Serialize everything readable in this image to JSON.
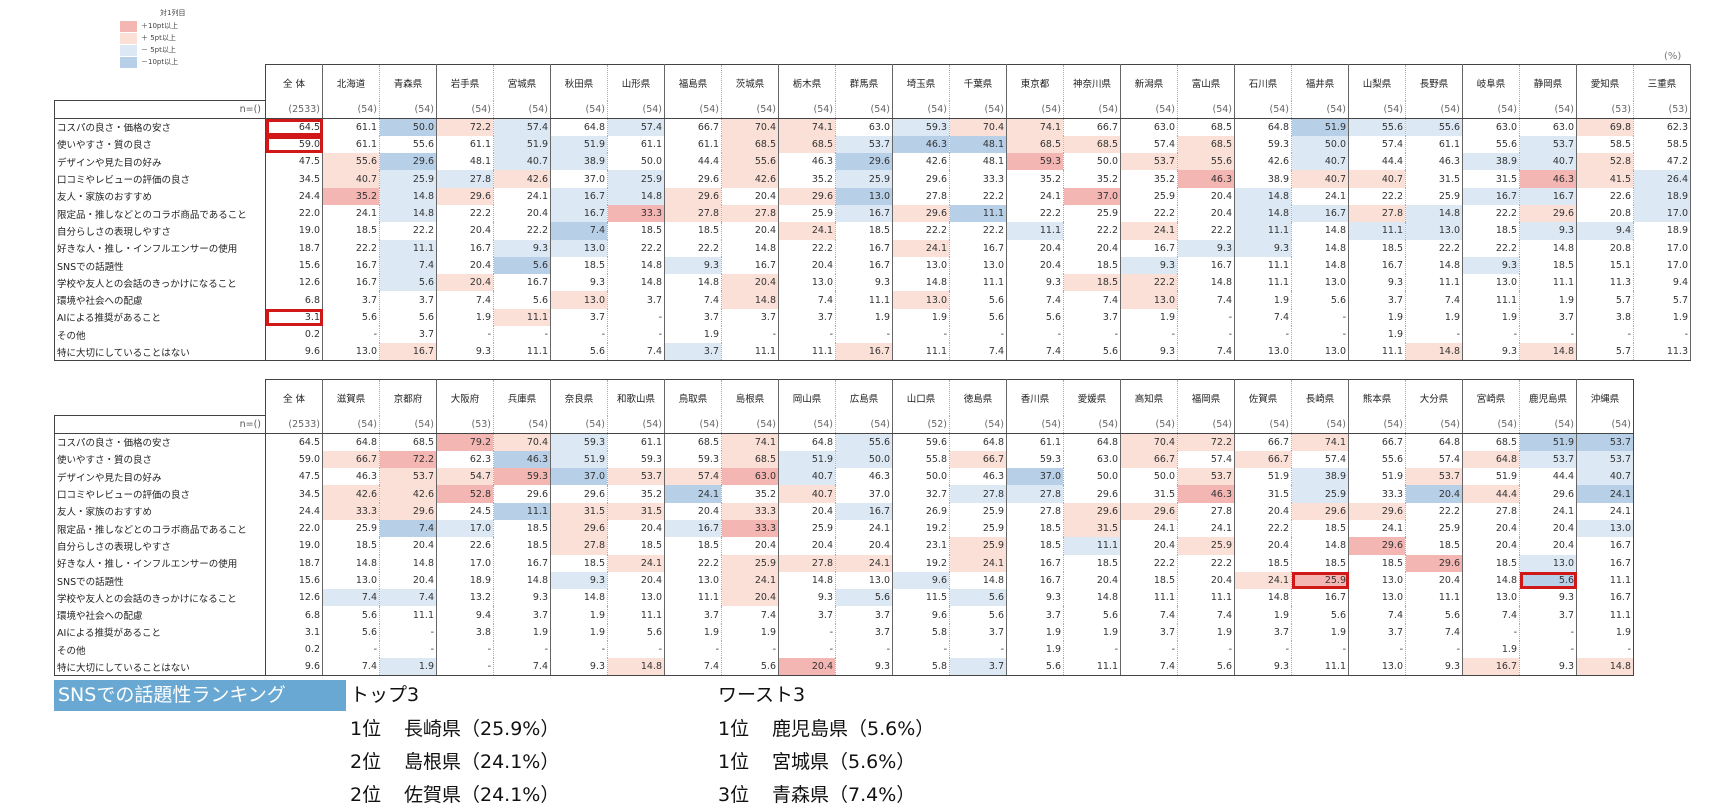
{
  "legend": {
    "title": "対1列目",
    "items": [
      {
        "label": "＋10pt以上",
        "color": "#f4b6b3"
      },
      {
        "label": "＋ 5pt以上",
        "color": "#fbe0d7"
      },
      {
        "label": "－ 5pt以上",
        "color": "#dce8f4"
      },
      {
        "label": "－10pt以上",
        "color": "#b8cfe8"
      }
    ]
  },
  "unit": "(%)",
  "n_label": "n=()",
  "categories": [
    "コスパの良さ・価格の安さ",
    "使いやすさ・質の良さ",
    "デザインや見た目の好み",
    "口コミやレビューの評価の良さ",
    "友人・家族のおすすめ",
    "限定品・推しなどとのコラボ商品であること",
    "自分らしさの表現しやすさ",
    "好きな人・推し・インフルエンサーの使用",
    "SNSでの話題性",
    "学校や友人との会話のきっかけになること",
    "環境や社会への配慮",
    "AIによる推奨があること",
    "その他",
    "特に大切にしていることはない"
  ],
  "table1": {
    "headers": [
      "全 体",
      "北海道",
      "青森県",
      "岩手県",
      "宮城県",
      "秋田県",
      "山形県",
      "福島県",
      "茨城県",
      "栃木県",
      "群馬県",
      "埼玉県",
      "千葉県",
      "東京都",
      "神奈川県",
      "新潟県",
      "富山県",
      "石川県",
      "福井県",
      "山梨県",
      "長野県",
      "岐阜県",
      "静岡県",
      "愛知県",
      "三重県"
    ],
    "n": [
      "(2533)",
      "(54)",
      "(54)",
      "(54)",
      "(54)",
      "(54)",
      "(54)",
      "(54)",
      "(54)",
      "(54)",
      "(54)",
      "(54)",
      "(54)",
      "(54)",
      "(54)",
      "(54)",
      "(54)",
      "(54)",
      "(54)",
      "(54)",
      "(54)",
      "(54)",
      "(54)",
      "(53)",
      "(53)"
    ],
    "rows": [
      [
        "64.5",
        "61.1",
        "50.0",
        "72.2",
        "57.4",
        "64.8",
        "57.4",
        "66.7",
        "70.4",
        "74.1",
        "63.0",
        "59.3",
        "70.4",
        "74.1",
        "66.7",
        "63.0",
        "68.5",
        "64.8",
        "51.9",
        "55.6",
        "55.6",
        "63.0",
        "63.0",
        "69.8",
        "62.3"
      ],
      [
        "59.0",
        "61.1",
        "55.6",
        "61.1",
        "51.9",
        "51.9",
        "61.1",
        "61.1",
        "68.5",
        "68.5",
        "53.7",
        "46.3",
        "48.1",
        "68.5",
        "68.5",
        "57.4",
        "68.5",
        "59.3",
        "50.0",
        "57.4",
        "61.1",
        "55.6",
        "53.7",
        "58.5",
        "58.5"
      ],
      [
        "47.5",
        "55.6",
        "29.6",
        "48.1",
        "40.7",
        "38.9",
        "50.0",
        "44.4",
        "55.6",
        "46.3",
        "29.6",
        "42.6",
        "48.1",
        "59.3",
        "50.0",
        "53.7",
        "55.6",
        "42.6",
        "40.7",
        "44.4",
        "46.3",
        "38.9",
        "40.7",
        "52.8",
        "47.2"
      ],
      [
        "34.5",
        "40.7",
        "25.9",
        "27.8",
        "42.6",
        "37.0",
        "25.9",
        "29.6",
        "42.6",
        "35.2",
        "25.9",
        "29.6",
        "33.3",
        "35.2",
        "35.2",
        "35.2",
        "46.3",
        "38.9",
        "40.7",
        "40.7",
        "31.5",
        "31.5",
        "46.3",
        "41.5",
        "26.4"
      ],
      [
        "24.4",
        "35.2",
        "14.8",
        "29.6",
        "24.1",
        "16.7",
        "14.8",
        "29.6",
        "20.4",
        "29.6",
        "13.0",
        "27.8",
        "22.2",
        "24.1",
        "37.0",
        "25.9",
        "20.4",
        "14.8",
        "24.1",
        "22.2",
        "25.9",
        "16.7",
        "16.7",
        "22.6",
        "18.9"
      ],
      [
        "22.0",
        "24.1",
        "14.8",
        "22.2",
        "20.4",
        "16.7",
        "33.3",
        "27.8",
        "27.8",
        "25.9",
        "16.7",
        "29.6",
        "11.1",
        "22.2",
        "25.9",
        "22.2",
        "20.4",
        "14.8",
        "16.7",
        "27.8",
        "14.8",
        "22.2",
        "29.6",
        "20.8",
        "17.0"
      ],
      [
        "19.0",
        "18.5",
        "22.2",
        "20.4",
        "22.2",
        "7.4",
        "18.5",
        "18.5",
        "20.4",
        "24.1",
        "18.5",
        "22.2",
        "22.2",
        "11.1",
        "22.2",
        "24.1",
        "22.2",
        "11.1",
        "14.8",
        "11.1",
        "13.0",
        "18.5",
        "9.3",
        "9.4",
        "18.9"
      ],
      [
        "18.7",
        "22.2",
        "11.1",
        "16.7",
        "9.3",
        "13.0",
        "22.2",
        "22.2",
        "14.8",
        "22.2",
        "16.7",
        "24.1",
        "16.7",
        "20.4",
        "20.4",
        "16.7",
        "9.3",
        "9.3",
        "14.8",
        "18.5",
        "22.2",
        "22.2",
        "14.8",
        "20.8",
        "17.0"
      ],
      [
        "15.6",
        "16.7",
        "7.4",
        "20.4",
        "5.6",
        "18.5",
        "14.8",
        "9.3",
        "16.7",
        "20.4",
        "16.7",
        "13.0",
        "13.0",
        "20.4",
        "18.5",
        "9.3",
        "16.7",
        "11.1",
        "14.8",
        "16.7",
        "14.8",
        "9.3",
        "18.5",
        "15.1",
        "17.0"
      ],
      [
        "12.6",
        "16.7",
        "5.6",
        "20.4",
        "16.7",
        "9.3",
        "14.8",
        "14.8",
        "20.4",
        "13.0",
        "9.3",
        "14.8",
        "11.1",
        "9.3",
        "18.5",
        "22.2",
        "14.8",
        "11.1",
        "13.0",
        "9.3",
        "11.1",
        "13.0",
        "11.1",
        "11.3",
        "9.4"
      ],
      [
        "6.8",
        "3.7",
        "3.7",
        "7.4",
        "5.6",
        "13.0",
        "3.7",
        "7.4",
        "14.8",
        "7.4",
        "11.1",
        "13.0",
        "5.6",
        "7.4",
        "7.4",
        "13.0",
        "7.4",
        "1.9",
        "5.6",
        "3.7",
        "7.4",
        "11.1",
        "1.9",
        "5.7",
        "5.7"
      ],
      [
        "3.1",
        "5.6",
        "5.6",
        "1.9",
        "11.1",
        "3.7",
        "-",
        "3.7",
        "3.7",
        "3.7",
        "1.9",
        "1.9",
        "5.6",
        "5.6",
        "3.7",
        "1.9",
        "-",
        "7.4",
        "-",
        "1.9",
        "1.9",
        "1.9",
        "3.7",
        "3.8",
        "1.9"
      ],
      [
        "0.2",
        "-",
        "3.7",
        "-",
        "-",
        "-",
        "-",
        "1.9",
        "-",
        "-",
        "-",
        "-",
        "-",
        "-",
        "-",
        "-",
        "-",
        "-",
        "-",
        "1.9",
        "-",
        "-",
        "-",
        "-",
        "-"
      ],
      [
        "9.6",
        "13.0",
        "16.7",
        "9.3",
        "11.1",
        "5.6",
        "7.4",
        "3.7",
        "11.1",
        "11.1",
        "16.7",
        "11.1",
        "7.4",
        "7.4",
        "5.6",
        "9.3",
        "7.4",
        "13.0",
        "13.0",
        "11.1",
        "14.8",
        "9.3",
        "14.8",
        "5.7",
        "11.3"
      ]
    ]
  },
  "table2": {
    "headers": [
      "全 体",
      "滋賀県",
      "京都府",
      "大阪府",
      "兵庫県",
      "奈良県",
      "和歌山県",
      "鳥取県",
      "島根県",
      "岡山県",
      "広島県",
      "山口県",
      "徳島県",
      "香川県",
      "愛媛県",
      "高知県",
      "福岡県",
      "佐賀県",
      "長崎県",
      "熊本県",
      "大分県",
      "宮崎県",
      "鹿児島県",
      "沖縄県"
    ],
    "n": [
      "(2533)",
      "(54)",
      "(54)",
      "(53)",
      "(54)",
      "(54)",
      "(54)",
      "(54)",
      "(54)",
      "(54)",
      "(54)",
      "(52)",
      "(54)",
      "(54)",
      "(54)",
      "(54)",
      "(54)",
      "(54)",
      "(54)",
      "(54)",
      "(54)",
      "(54)",
      "(54)",
      "(54)"
    ],
    "rows": [
      [
        "64.5",
        "64.8",
        "68.5",
        "79.2",
        "70.4",
        "59.3",
        "61.1",
        "68.5",
        "74.1",
        "64.8",
        "55.6",
        "59.6",
        "64.8",
        "61.1",
        "64.8",
        "70.4",
        "72.2",
        "66.7",
        "74.1",
        "66.7",
        "64.8",
        "68.5",
        "51.9",
        "53.7"
      ],
      [
        "59.0",
        "66.7",
        "72.2",
        "62.3",
        "46.3",
        "51.9",
        "59.3",
        "59.3",
        "68.5",
        "51.9",
        "50.0",
        "55.8",
        "66.7",
        "59.3",
        "63.0",
        "66.7",
        "57.4",
        "66.7",
        "57.4",
        "55.6",
        "57.4",
        "64.8",
        "53.7",
        "53.7"
      ],
      [
        "47.5",
        "46.3",
        "53.7",
        "54.7",
        "59.3",
        "37.0",
        "53.7",
        "57.4",
        "63.0",
        "40.7",
        "46.3",
        "50.0",
        "46.3",
        "37.0",
        "50.0",
        "50.0",
        "53.7",
        "51.9",
        "38.9",
        "51.9",
        "53.7",
        "51.9",
        "44.4",
        "40.7"
      ],
      [
        "34.5",
        "42.6",
        "42.6",
        "52.8",
        "29.6",
        "29.6",
        "35.2",
        "24.1",
        "35.2",
        "40.7",
        "37.0",
        "32.7",
        "27.8",
        "27.8",
        "29.6",
        "31.5",
        "46.3",
        "31.5",
        "25.9",
        "33.3",
        "20.4",
        "44.4",
        "29.6",
        "24.1"
      ],
      [
        "24.4",
        "33.3",
        "29.6",
        "24.5",
        "11.1",
        "31.5",
        "31.5",
        "20.4",
        "33.3",
        "20.4",
        "16.7",
        "26.9",
        "25.9",
        "27.8",
        "29.6",
        "29.6",
        "27.8",
        "20.4",
        "29.6",
        "29.6",
        "22.2",
        "27.8",
        "24.1",
        "24.1"
      ],
      [
        "22.0",
        "25.9",
        "7.4",
        "17.0",
        "18.5",
        "29.6",
        "20.4",
        "16.7",
        "33.3",
        "25.9",
        "24.1",
        "19.2",
        "25.9",
        "18.5",
        "31.5",
        "24.1",
        "24.1",
        "22.2",
        "18.5",
        "24.1",
        "25.9",
        "20.4",
        "20.4",
        "13.0"
      ],
      [
        "19.0",
        "18.5",
        "20.4",
        "22.6",
        "18.5",
        "27.8",
        "18.5",
        "18.5",
        "20.4",
        "20.4",
        "20.4",
        "23.1",
        "25.9",
        "18.5",
        "11.1",
        "20.4",
        "25.9",
        "20.4",
        "14.8",
        "29.6",
        "18.5",
        "20.4",
        "20.4",
        "16.7"
      ],
      [
        "18.7",
        "14.8",
        "14.8",
        "17.0",
        "16.7",
        "18.5",
        "24.1",
        "22.2",
        "25.9",
        "27.8",
        "24.1",
        "19.2",
        "24.1",
        "16.7",
        "18.5",
        "22.2",
        "22.2",
        "18.5",
        "18.5",
        "18.5",
        "29.6",
        "18.5",
        "13.0",
        "16.7"
      ],
      [
        "15.6",
        "13.0",
        "20.4",
        "18.9",
        "14.8",
        "9.3",
        "20.4",
        "13.0",
        "24.1",
        "14.8",
        "13.0",
        "9.6",
        "14.8",
        "16.7",
        "20.4",
        "18.5",
        "20.4",
        "24.1",
        "25.9",
        "13.0",
        "20.4",
        "14.8",
        "5.6",
        "11.1"
      ],
      [
        "12.6",
        "7.4",
        "7.4",
        "13.2",
        "9.3",
        "14.8",
        "13.0",
        "11.1",
        "20.4",
        "9.3",
        "5.6",
        "11.5",
        "5.6",
        "9.3",
        "14.8",
        "11.1",
        "11.1",
        "14.8",
        "16.7",
        "13.0",
        "11.1",
        "13.0",
        "9.3",
        "16.7"
      ],
      [
        "6.8",
        "5.6",
        "11.1",
        "9.4",
        "3.7",
        "1.9",
        "11.1",
        "3.7",
        "7.4",
        "3.7",
        "3.7",
        "9.6",
        "5.6",
        "3.7",
        "5.6",
        "7.4",
        "7.4",
        "1.9",
        "5.6",
        "7.4",
        "5.6",
        "7.4",
        "3.7",
        "11.1"
      ],
      [
        "3.1",
        "5.6",
        "-",
        "3.8",
        "1.9",
        "1.9",
        "5.6",
        "1.9",
        "1.9",
        "-",
        "3.7",
        "5.8",
        "3.7",
        "1.9",
        "1.9",
        "3.7",
        "1.9",
        "3.7",
        "1.9",
        "3.7",
        "7.4",
        "-",
        "-",
        "1.9"
      ],
      [
        "0.2",
        "-",
        "-",
        "-",
        "-",
        "-",
        "-",
        "-",
        "-",
        "-",
        "-",
        "-",
        "-",
        "1.9",
        "-",
        "-",
        "-",
        "-",
        "-",
        "-",
        "-",
        "1.9",
        "-",
        "-"
      ],
      [
        "9.6",
        "7.4",
        "1.9",
        "-",
        "7.4",
        "9.3",
        "14.8",
        "7.4",
        "5.6",
        "20.4",
        "9.3",
        "5.8",
        "3.7",
        "5.6",
        "11.1",
        "7.4",
        "5.6",
        "9.3",
        "11.1",
        "13.0",
        "9.3",
        "16.7",
        "9.3",
        "14.8"
      ]
    ]
  },
  "ranking": {
    "title": "SNSでの話題性ランキング",
    "top3": {
      "heading": "トップ3",
      "items": [
        {
          "rank": "1位",
          "text": "長崎県（25.9%）"
        },
        {
          "rank": "2位",
          "text": "島根県（24.1%）"
        },
        {
          "rank": "2位",
          "text": "佐賀県（24.1%）"
        }
      ]
    },
    "worst3": {
      "heading": "ワースト3",
      "items": [
        {
          "rank": "1位",
          "text": "鹿児島県（5.6%）"
        },
        {
          "rank": "1位",
          "text": "宮城県（5.6%）"
        },
        {
          "rank": "3位",
          "text": "青森県（7.4%）"
        }
      ]
    }
  }
}
